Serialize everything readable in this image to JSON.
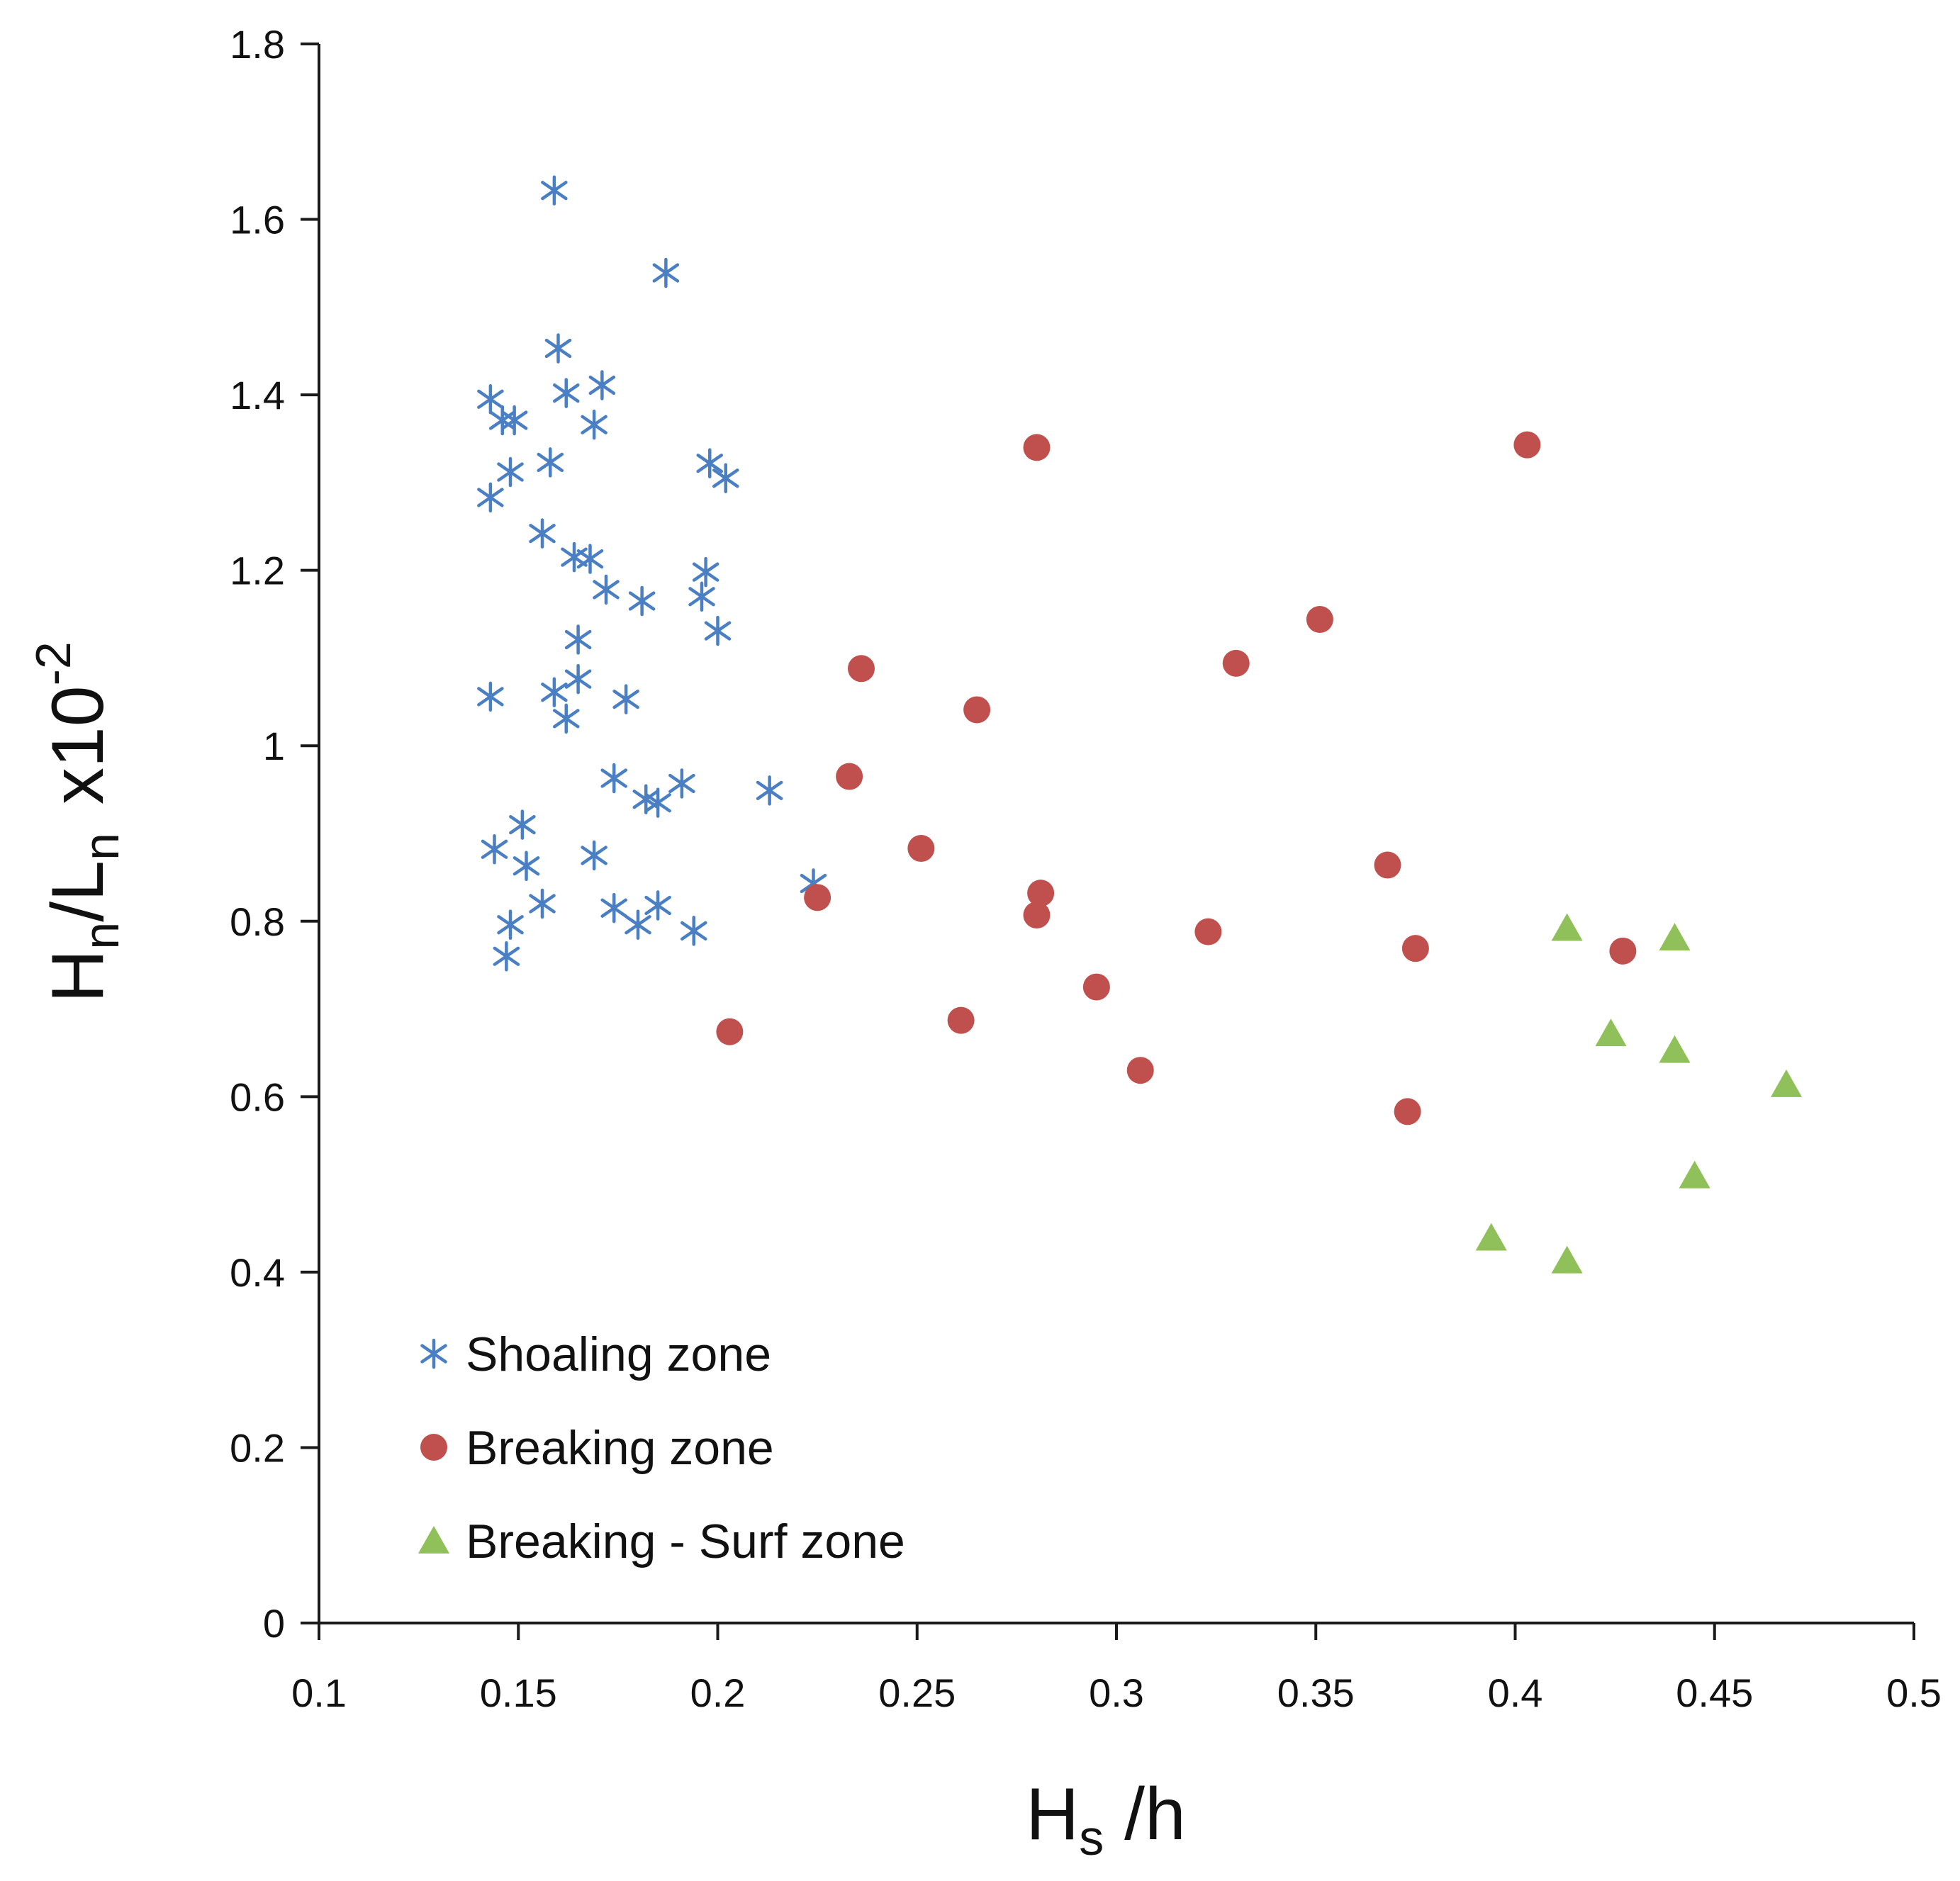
{
  "chart_data": {
    "type": "scatter",
    "title": "",
    "xlabel": {
      "main": "H",
      "sub": "s",
      "rest": " /h"
    },
    "ylabel": {
      "main": "H",
      "sub1": "n",
      "mid": "/L",
      "sub2": "n",
      "factor": "x10",
      "exp": "-2"
    },
    "xlim": [
      0.1,
      0.5
    ],
    "ylim": [
      0,
      1.8
    ],
    "x_ticks": [
      "0.1",
      "0.15",
      "0.2",
      "0.25",
      "0.3",
      "0.35",
      "0.4",
      "0.45",
      "0.5"
    ],
    "y_ticks": [
      "0",
      "0.2",
      "0.4",
      "0.6",
      "0.8",
      "1",
      "1.2",
      "1.4",
      "1.6",
      "1.8"
    ],
    "legend_position": "lower-left",
    "series": [
      {
        "name": "Shoaling zone",
        "marker": "asterisk",
        "color": "#4a7fc4",
        "points": [
          [
            0.159,
            1.633
          ],
          [
            0.187,
            1.539
          ],
          [
            0.16,
            1.453
          ],
          [
            0.171,
            1.411
          ],
          [
            0.162,
            1.402
          ],
          [
            0.143,
            1.395
          ],
          [
            0.146,
            1.371
          ],
          [
            0.149,
            1.371
          ],
          [
            0.169,
            1.366
          ],
          [
            0.158,
            1.323
          ],
          [
            0.148,
            1.312
          ],
          [
            0.198,
            1.322
          ],
          [
            0.202,
            1.305
          ],
          [
            0.143,
            1.283
          ],
          [
            0.156,
            1.242
          ],
          [
            0.164,
            1.215
          ],
          [
            0.168,
            1.213
          ],
          [
            0.197,
            1.198
          ],
          [
            0.172,
            1.178
          ],
          [
            0.196,
            1.17
          ],
          [
            0.181,
            1.165
          ],
          [
            0.2,
            1.131
          ],
          [
            0.165,
            1.121
          ],
          [
            0.165,
            1.076
          ],
          [
            0.159,
            1.061
          ],
          [
            0.143,
            1.056
          ],
          [
            0.177,
            1.053
          ],
          [
            0.162,
            1.031
          ],
          [
            0.174,
            0.963
          ],
          [
            0.191,
            0.957
          ],
          [
            0.213,
            0.949
          ],
          [
            0.182,
            0.939
          ],
          [
            0.185,
            0.935
          ],
          [
            0.151,
            0.91
          ],
          [
            0.144,
            0.882
          ],
          [
            0.169,
            0.875
          ],
          [
            0.152,
            0.863
          ],
          [
            0.224,
            0.843
          ],
          [
            0.156,
            0.82
          ],
          [
            0.174,
            0.815
          ],
          [
            0.185,
            0.818
          ],
          [
            0.148,
            0.796
          ],
          [
            0.18,
            0.796
          ],
          [
            0.194,
            0.789
          ],
          [
            0.147,
            0.76
          ]
        ]
      },
      {
        "name": "Breaking zone",
        "marker": "circle",
        "color": "#c0504d",
        "points": [
          [
            0.28,
            1.34
          ],
          [
            0.403,
            1.343
          ],
          [
            0.351,
            1.144
          ],
          [
            0.33,
            1.094
          ],
          [
            0.236,
            1.088
          ],
          [
            0.265,
            1.041
          ],
          [
            0.233,
            0.965
          ],
          [
            0.251,
            0.883
          ],
          [
            0.368,
            0.864
          ],
          [
            0.281,
            0.832
          ],
          [
            0.225,
            0.827
          ],
          [
            0.28,
            0.807
          ],
          [
            0.323,
            0.788
          ],
          [
            0.375,
            0.769
          ],
          [
            0.427,
            0.766
          ],
          [
            0.295,
            0.725
          ],
          [
            0.261,
            0.687
          ],
          [
            0.203,
            0.674
          ],
          [
            0.306,
            0.63
          ],
          [
            0.373,
            0.583
          ]
        ]
      },
      {
        "name": "Breaking - Surf zone",
        "marker": "triangle",
        "color": "#8fc05a",
        "points": [
          [
            0.413,
            0.792
          ],
          [
            0.44,
            0.781
          ],
          [
            0.424,
            0.672
          ],
          [
            0.44,
            0.653
          ],
          [
            0.468,
            0.614
          ],
          [
            0.445,
            0.51
          ],
          [
            0.394,
            0.439
          ],
          [
            0.413,
            0.413
          ]
        ]
      }
    ]
  }
}
